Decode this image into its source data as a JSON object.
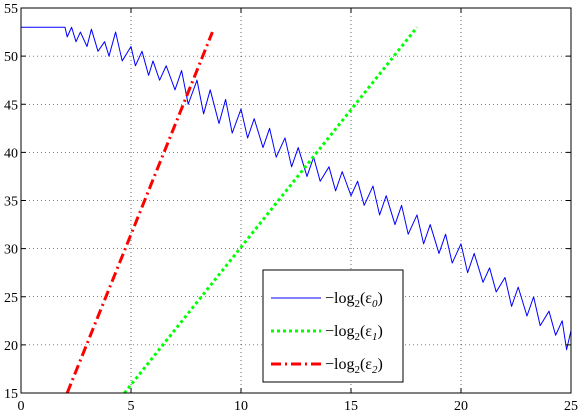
{
  "chart_data": {
    "type": "line",
    "xlim": [
      0,
      25
    ],
    "ylim": [
      15,
      55
    ],
    "xticks": [
      0,
      5,
      10,
      15,
      20,
      25
    ],
    "yticks": [
      15,
      20,
      25,
      30,
      35,
      40,
      45,
      50,
      55
    ],
    "grid": "dotted",
    "legend_position": "lower-right",
    "series": [
      {
        "name": "-log2(ε0)",
        "name_parts": {
          "minus": "−",
          "func": "log",
          "base": "2",
          "open": "(ε",
          "sub": "0",
          "close": ")"
        },
        "color": "#0000ff",
        "style": "solid",
        "x": [
          0,
          2.0,
          2.1,
          2.3,
          2.5,
          2.7,
          3.0,
          3.2,
          3.5,
          3.8,
          4.0,
          4.3,
          4.6,
          5.0,
          5.2,
          5.5,
          5.8,
          6.0,
          6.3,
          6.6,
          7.0,
          7.3,
          7.6,
          8.0,
          8.3,
          8.6,
          9.0,
          9.3,
          9.6,
          10.0,
          10.3,
          10.6,
          11.0,
          11.3,
          11.6,
          12.0,
          12.3,
          12.6,
          13.0,
          13.3,
          13.6,
          14.0,
          14.3,
          14.6,
          15.0,
          15.3,
          15.6,
          16.0,
          16.3,
          16.6,
          17.0,
          17.3,
          17.6,
          18.0,
          18.3,
          18.6,
          19.0,
          19.3,
          19.6,
          20.0,
          20.3,
          20.6,
          21.0,
          21.3,
          21.6,
          22.0,
          22.3,
          22.6,
          23.0,
          23.3,
          23.6,
          24.0,
          24.3,
          24.6,
          24.8,
          25.0
        ],
        "values": [
          53,
          53,
          52,
          53,
          51.5,
          52.5,
          51,
          52.8,
          50.5,
          51.5,
          50,
          52.5,
          49.5,
          51,
          49,
          50.5,
          48,
          49.5,
          47.5,
          49,
          46.5,
          48.5,
          45,
          47.5,
          44,
          46.5,
          43,
          45.5,
          42,
          44.5,
          41.5,
          43.5,
          40.5,
          42.5,
          39.5,
          41.5,
          38.5,
          40.5,
          37.5,
          39.5,
          37,
          38.5,
          36,
          38,
          35.5,
          37,
          34.5,
          36.5,
          33.5,
          35.5,
          32.5,
          34.5,
          31.5,
          33.5,
          30.5,
          32.5,
          29.5,
          31.5,
          28.5,
          30.5,
          27.5,
          29.5,
          26.5,
          28,
          25.5,
          27,
          24,
          26,
          23,
          25,
          22,
          23.5,
          21,
          22.5,
          19.5,
          21.5
        ]
      },
      {
        "name": "-log2(ε1)",
        "name_parts": {
          "minus": "−",
          "func": "log",
          "base": "2",
          "open": "(ε",
          "sub": "1",
          "close": ")"
        },
        "color": "#00ff00",
        "style": "dotted",
        "x": [
          4.7,
          18.0
        ],
        "values": [
          15,
          53
        ]
      },
      {
        "name": "-log2(ε2)",
        "name_parts": {
          "minus": "−",
          "func": "log",
          "base": "2",
          "open": "(ε",
          "sub": "2",
          "close": ")"
        },
        "color": "#ff0000",
        "style": "dashdot",
        "x": [
          2.1,
          8.7
        ],
        "values": [
          15,
          52.5
        ]
      }
    ]
  }
}
